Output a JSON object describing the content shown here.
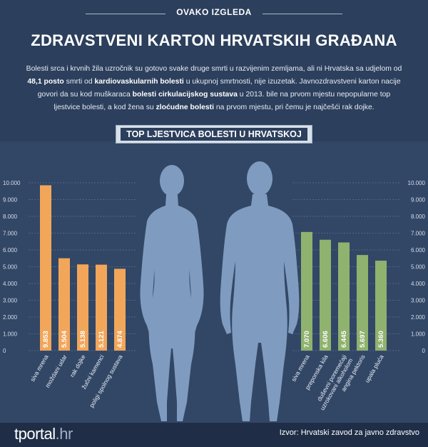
{
  "kicker": "OVAKO IZGLEDA",
  "headline": "ZDRAVSTVENI KARTON HRVATSKIH GRAĐANA",
  "intro": {
    "p1": "Bolesti srca i krvnih žila uzročnik su gotovo svake druge smrti u razvijenim zemljama, ali ni Hrvatska sa udjelom od ",
    "b1": "48,1 posto",
    "p2": " smrti od ",
    "b2": "kardiovaskularnih bolesti",
    "p3": " u ukupnoj smrtnosti, nije izuzetak. Javnozdravstveni karton nacije govori da su kod muškaraca ",
    "b3": "bolesti cirkulacijskog sustava",
    "p4": " u 2013. bile na prvom mjestu nepopularne top ljestvice bolesti, a kod žena su ",
    "b4": "zloćudne bolesti",
    "p5": " na prvom mjestu, pri čemu je najčešći rak dojke."
  },
  "banner": "TOP LJESTVICA BOLESTI U HRVATSKOJ",
  "source": "Izvor: Hrvatski zavod za javno zdravstvo",
  "logo": {
    "main": "tportal",
    "suffix": ".hr"
  },
  "colors": {
    "women_bars": "#f2a65a",
    "men_bars": "#8fb26e",
    "silhouette": "#7f9cc0",
    "background": "#324766"
  },
  "chart_data": [
    {
      "type": "bar",
      "name": "women",
      "categories": [
        "siva mrena",
        "moždani udar",
        "rak dojke",
        "žučni kamenci",
        "poligi spolnog sustava"
      ],
      "values": [
        9853,
        5504,
        5138,
        5121,
        4874
      ],
      "value_labels": [
        "9.853",
        "5.504",
        "5.138",
        "5.121",
        "4.874"
      ],
      "ylim": [
        0,
        10000
      ],
      "yticks": [
        "0",
        "1.000",
        "2.000",
        "3.000",
        "4.000",
        "5.000",
        "6.000",
        "7.000",
        "8.000",
        "9.000",
        "10.000"
      ],
      "axis_side": "left"
    },
    {
      "type": "bar",
      "name": "men",
      "categories": [
        "siva mrena",
        "preponska kila",
        "duševni poremećaji uzrokovani alkoholom",
        "angina pektoris",
        "upala pluća"
      ],
      "values": [
        7070,
        6606,
        6445,
        5697,
        5360
      ],
      "value_labels": [
        "7.070",
        "6.606",
        "6.445",
        "5.697",
        "5.360"
      ],
      "ylim": [
        0,
        10000
      ],
      "yticks": [
        "0",
        "1.000",
        "2.000",
        "3.000",
        "4.000",
        "5.000",
        "6.000",
        "7.000",
        "8.000",
        "9.000",
        "10.000"
      ],
      "axis_side": "right"
    }
  ]
}
